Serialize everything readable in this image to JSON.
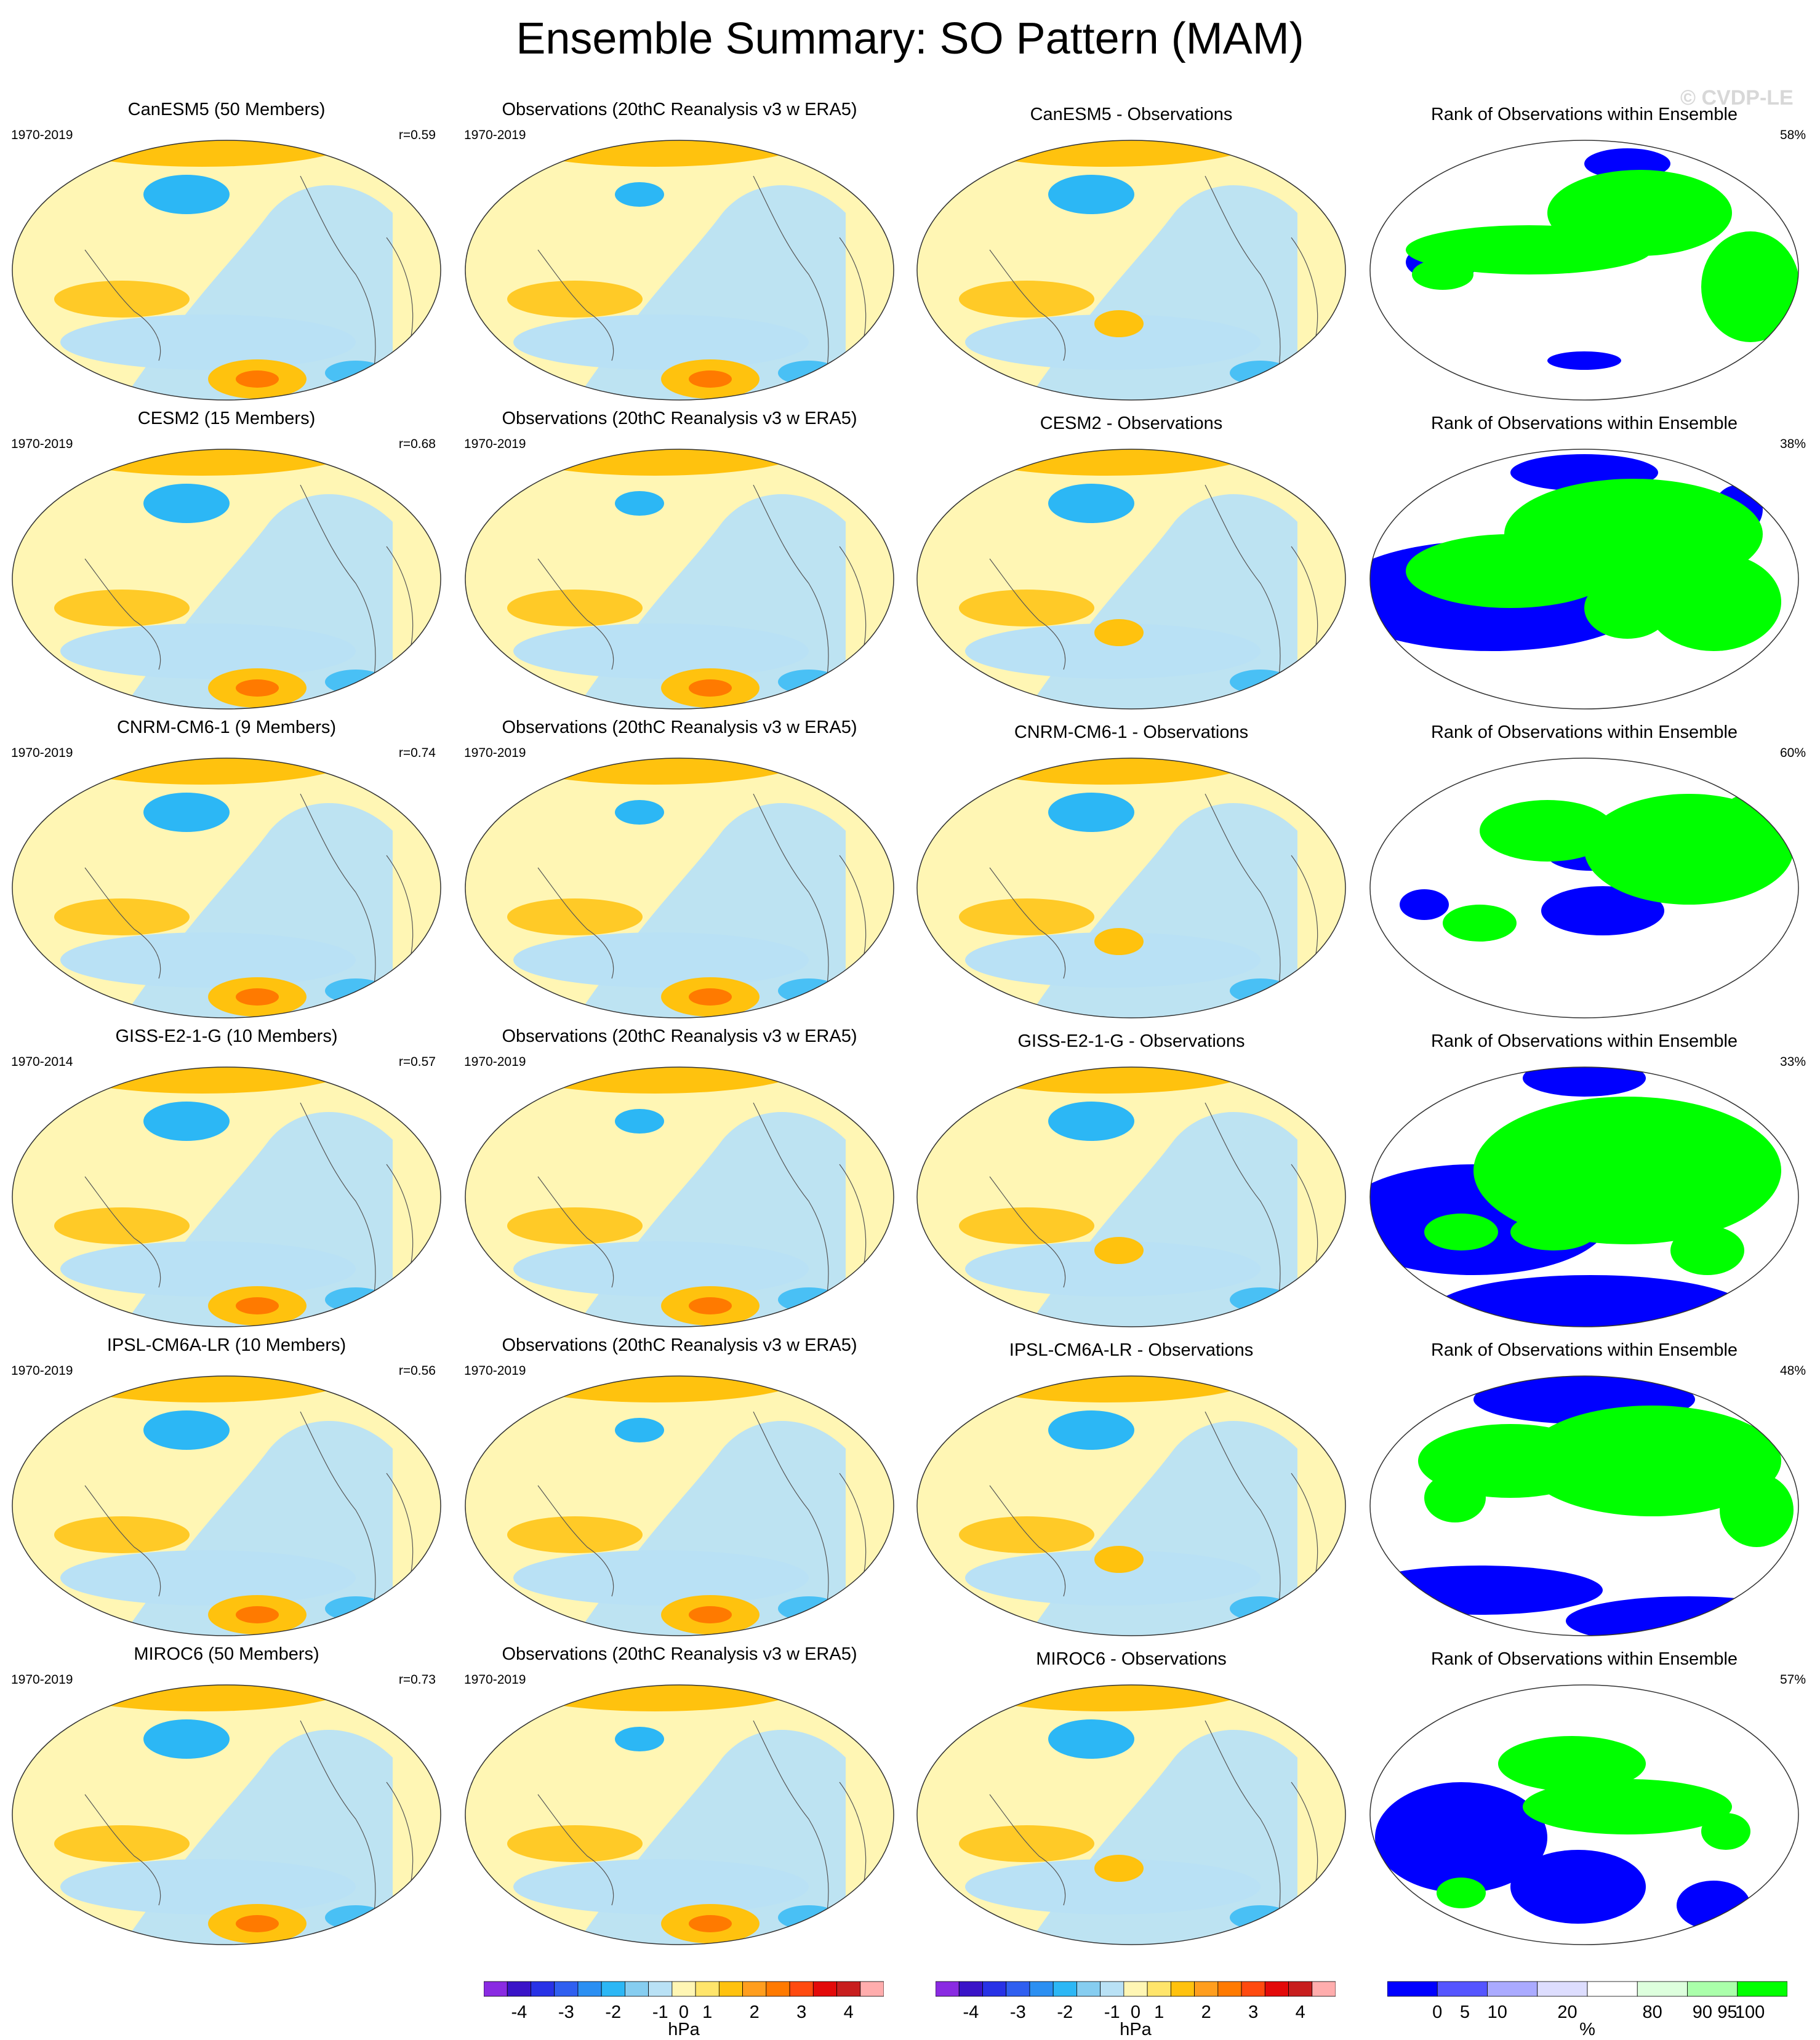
{
  "title": "Ensemble Summary: SO Pattern (MAM)",
  "watermark": "© CVDP-LE",
  "rows": [
    {
      "model_title": "CanESM5 (50 Members)",
      "model_years": "1970-2019",
      "r": "r=0.59",
      "obs_title": "Observations (20thC Reanalysis v3 w ERA5)",
      "obs_years": "1970-2019",
      "diff_title": "CanESM5 - Observations",
      "rank_title": "Rank of Observations within Ensemble",
      "rank_pct": "58%"
    },
    {
      "model_title": "CESM2 (15 Members)",
      "model_years": "1970-2019",
      "r": "r=0.68",
      "obs_title": "Observations (20thC Reanalysis v3 w ERA5)",
      "obs_years": "1970-2019",
      "diff_title": "CESM2 - Observations",
      "rank_title": "Rank of Observations within Ensemble",
      "rank_pct": "38%"
    },
    {
      "model_title": "CNRM-CM6-1 (9 Members)",
      "model_years": "1970-2019",
      "r": "r=0.74",
      "obs_title": "Observations (20thC Reanalysis v3 w ERA5)",
      "obs_years": "1970-2019",
      "diff_title": "CNRM-CM6-1 - Observations",
      "rank_title": "Rank of Observations within Ensemble",
      "rank_pct": "60%"
    },
    {
      "model_title": "GISS-E2-1-G (10 Members)",
      "model_years": "1970-2014",
      "r": "r=0.57",
      "obs_title": "Observations (20thC Reanalysis v3 w ERA5)",
      "obs_years": "1970-2019",
      "diff_title": "GISS-E2-1-G - Observations",
      "rank_title": "Rank of Observations within Ensemble",
      "rank_pct": "33%"
    },
    {
      "model_title": "IPSL-CM6A-LR (10 Members)",
      "model_years": "1970-2019",
      "r": "r=0.56",
      "obs_title": "Observations (20thC Reanalysis v3 w ERA5)",
      "obs_years": "1970-2019",
      "diff_title": "IPSL-CM6A-LR - Observations",
      "rank_title": "Rank of Observations within Ensemble",
      "rank_pct": "48%"
    },
    {
      "model_title": "MIROC6 (50 Members)",
      "model_years": "1970-2019",
      "r": "r=0.73",
      "obs_title": "Observations (20thC Reanalysis v3 w ERA5)",
      "obs_years": "1970-2019",
      "diff_title": "MIROC6 - Observations",
      "rank_title": "Rank of Observations within Ensemble",
      "rank_pct": "57%"
    }
  ],
  "hpa_colorbar": {
    "unit": "hPa",
    "colors": [
      "#8a2be2",
      "#3a14c8",
      "#2832e6",
      "#2f5ff0",
      "#2b8ff2",
      "#2cb7f5",
      "#86cdf0",
      "#b9e1f5",
      "#fff6b4",
      "#ffe56b",
      "#ffc20e",
      "#ff9e1e",
      "#ff7a00",
      "#ff4a0f",
      "#e30a0a",
      "#c81e1e",
      "#ffadad"
    ],
    "tick_labels": [
      "-4",
      "-3",
      "-2",
      "-1",
      "0",
      "1",
      "2",
      "3",
      "4"
    ]
  },
  "rank_colorbar": {
    "unit": "%",
    "colors": [
      "#0000ff",
      "#5555ff",
      "#aaaaff",
      "#ddddfe",
      "#ffffff",
      "#ddffdd",
      "#aaffaa",
      "#00ff00"
    ],
    "tick_labels": [
      "0",
      "5",
      "10",
      "20",
      "80",
      "90",
      "95",
      "100"
    ]
  },
  "colors": {
    "light_yellow": "#fff6b4",
    "light_blue": "#b9e1f5",
    "orange": "#ffc20e",
    "blue": "#2cb7f5",
    "rank_green": "#00ff00",
    "rank_blue": "#0000ff"
  }
}
